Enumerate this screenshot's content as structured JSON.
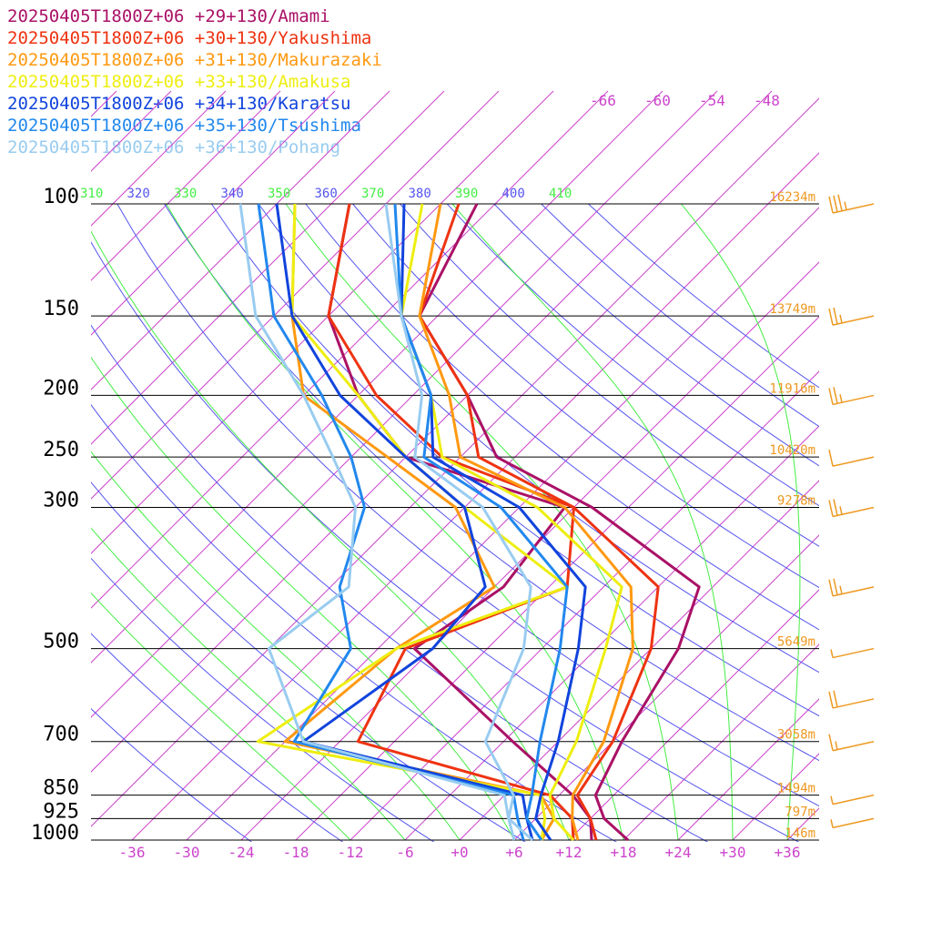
{
  "chart_data": {
    "type": "line",
    "x_axis": {
      "ticks": [
        "-36",
        "-30",
        "-24",
        "-18",
        "-12",
        "-6",
        "+0",
        "+6",
        "+12",
        "+18",
        "+24",
        "+30",
        "+36"
      ],
      "upper_ticks": [
        "-66",
        "-60",
        "-54",
        "-48"
      ]
    },
    "y_axis": {
      "scale": "log",
      "pressure_levels": [
        100,
        150,
        200,
        250,
        300,
        500,
        700,
        850,
        925,
        1000
      ],
      "level_labels": [
        "100",
        "150",
        "200",
        "250",
        "300",
        "500",
        "700",
        "850",
        "925",
        "1000"
      ],
      "height_labels": [
        "16234m",
        "13749m",
        "11916m",
        "10420m",
        "9278m",
        "5649m",
        "3058m",
        "1494m",
        "797m",
        "146m"
      ]
    },
    "theta_labels": [
      "310",
      "320",
      "330",
      "340",
      "350",
      "360",
      "370",
      "380",
      "390",
      "400",
      "410"
    ],
    "grid": true,
    "legend_position": "top-left",
    "pressure": [
      1000,
      925,
      850,
      700,
      500,
      400,
      300,
      250,
      200,
      150,
      100
    ],
    "series": [
      {
        "name": "20250405T1800Z+06 +29+130/Amami",
        "color": "#aa1166",
        "temperature": [
          18.5,
          13.5,
          10.0,
          7.0,
          3.0,
          -1.5,
          -22.0,
          -38.0,
          -48.0,
          -62.0,
          -68.0
        ],
        "dewpoint": [
          14.5,
          12.0,
          7.5,
          -5.0,
          -26.0,
          -23.0,
          -25.0,
          -48.0,
          -60.0,
          -72.0,
          -82.0
        ]
      },
      {
        "name": "20250405T1800Z+06 +30+130/Yakushima",
        "color": "#ee3311",
        "temperature": [
          15.0,
          12.0,
          8.0,
          6.0,
          0.0,
          -6.0,
          -24.0,
          -40.0,
          -48.0,
          -62.0,
          -70.0
        ],
        "dewpoint": [
          12.5,
          10.0,
          5.0,
          -22.0,
          -27.0,
          -16.0,
          -24.0,
          -44.0,
          -58.0,
          -72.0,
          -82.0
        ]
      },
      {
        "name": "20250405T1800Z+06 +31+130/Makurazaki",
        "color": "#ff9911",
        "temperature": [
          13.0,
          10.0,
          7.5,
          5.0,
          -2.0,
          -9.0,
          -25.0,
          -42.0,
          -50.0,
          -62.0,
          -72.0
        ],
        "dewpoint": [
          9.0,
          8.0,
          4.0,
          -30.0,
          -28.0,
          -24.0,
          -37.0,
          -50.0,
          -66.0,
          -76.0,
          -88.0
        ]
      },
      {
        "name": "20250405T1800Z+06 +33+130/Amakusa",
        "color": "#eeee11",
        "temperature": [
          12.5,
          8.0,
          5.0,
          2.0,
          -5.0,
          -10.0,
          -28.0,
          -44.0,
          -52.0,
          -64.0,
          -74.0
        ],
        "dewpoint": [
          9.0,
          7.0,
          4.0,
          -33.0,
          -28.0,
          -16.0,
          -36.0,
          -48.0,
          -60.0,
          -76.0,
          -88.0
        ]
      },
      {
        "name": "20250405T1800Z+06 +34+130/Karatsu",
        "color": "#1144dd",
        "temperature": [
          10.0,
          6.0,
          4.0,
          0.0,
          -8.0,
          -14.0,
          -30.0,
          -45.0,
          -52.0,
          -64.0,
          -76.0
        ],
        "dewpoint": [
          8.0,
          5.0,
          2.0,
          -28.0,
          -24.0,
          -25.0,
          -36.0,
          -48.0,
          -62.0,
          -76.0,
          -90.0
        ]
      },
      {
        "name": "20250405T1800Z+06 +35+130/Tsushima",
        "color": "#2288ee",
        "temperature": [
          9.0,
          5.0,
          3.0,
          -2.0,
          -10.0,
          -16.0,
          -32.0,
          -46.0,
          -52.0,
          -64.0,
          -77.0
        ],
        "dewpoint": [
          7.0,
          4.0,
          1.0,
          -29.0,
          -33.0,
          -41.0,
          -47.0,
          -54.0,
          -64.0,
          -78.0,
          -92.0
        ]
      },
      {
        "name": "20250405T1800Z+06 +36+130/Pohang",
        "color": "#99ccf0",
        "temperature": [
          8.0,
          3.0,
          1.0,
          -8.0,
          -14.0,
          -20.0,
          -34.0,
          -47.0,
          -53.0,
          -64.0,
          -78.0
        ],
        "dewpoint": [
          6.0,
          3.0,
          0.0,
          -28.0,
          -42.0,
          -40.0,
          -48.0,
          -56.0,
          -66.0,
          -80.0,
          -94.0
        ]
      }
    ],
    "wind_barbs": [
      {
        "label_level": "100",
        "speed_kt": 35
      },
      {
        "label_level": "150",
        "speed_kt": 25
      },
      {
        "label_level": "200",
        "speed_kt": 25
      },
      {
        "label_level": "250",
        "speed_kt": 10
      },
      {
        "label_level": "300",
        "speed_kt": 25
      },
      {
        "label_level": "400",
        "speed_kt": 25
      },
      {
        "label_level": "500",
        "speed_kt": 5
      },
      {
        "label_level": "600",
        "speed_kt": 20
      },
      {
        "label_level": "700",
        "speed_kt": 15
      },
      {
        "label_level": "850",
        "speed_kt": 5
      },
      {
        "label_level": "925",
        "speed_kt": 5
      }
    ]
  },
  "colors": {
    "isobar": "#000000",
    "isotherm": "#cc44cc",
    "dry_adiabat": "#5555ee",
    "moist_adiabat": "#44ee44",
    "height_label": "#ee9922",
    "wind_barb": "#ee9922"
  }
}
